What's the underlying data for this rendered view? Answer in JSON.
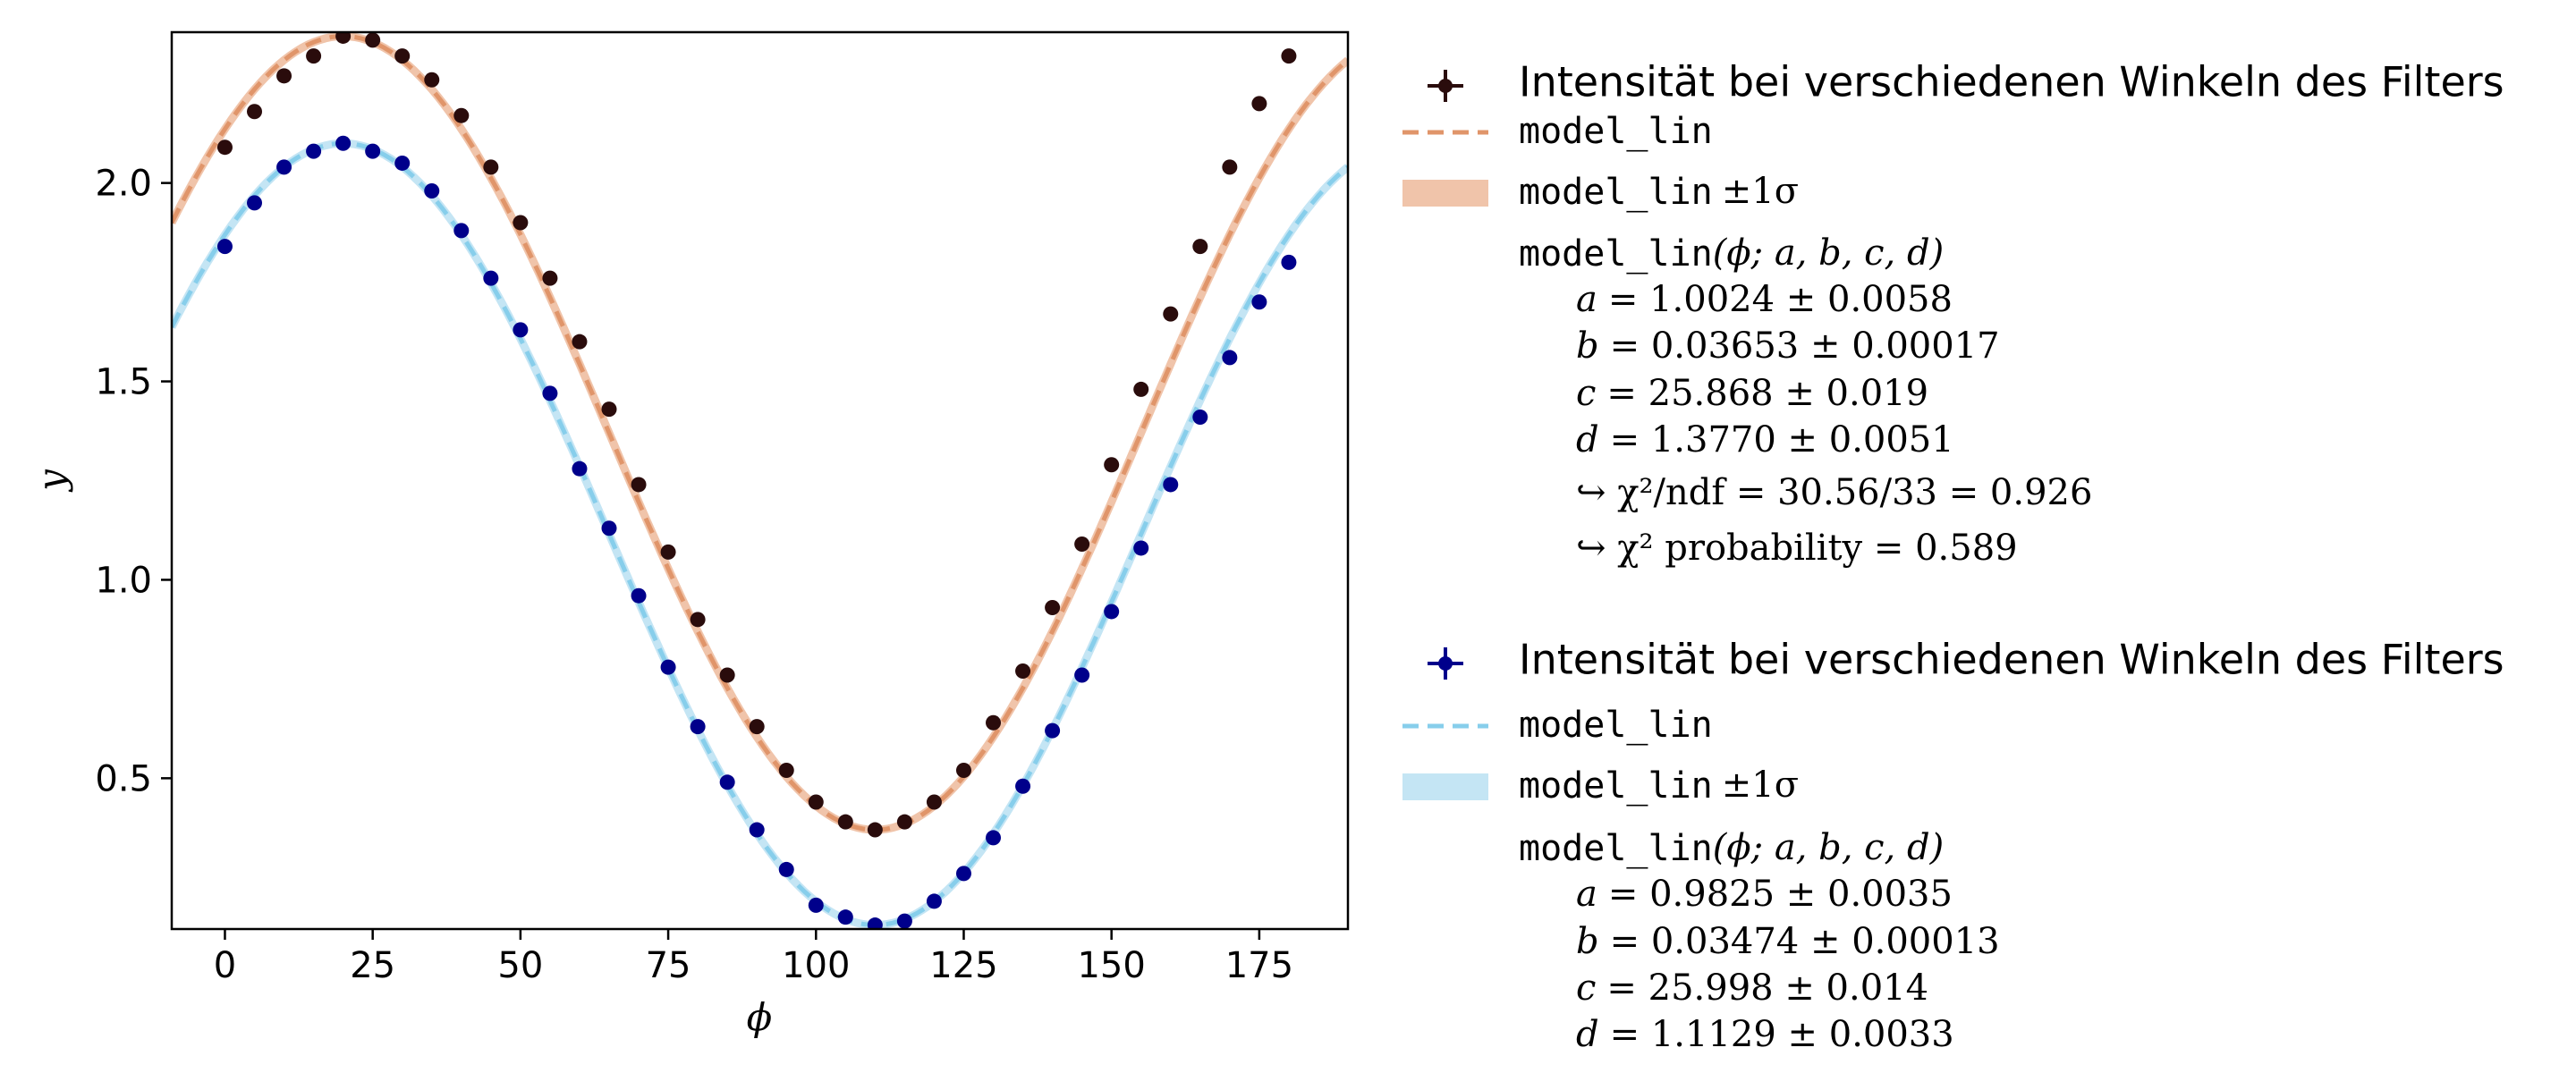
{
  "chart_data": {
    "type": "scatter",
    "xlabel": "ϕ",
    "ylabel": "y",
    "xlim": [
      -9,
      190
    ],
    "ylim": [
      0.12,
      2.38
    ],
    "xticks": [
      0,
      25,
      50,
      75,
      100,
      125,
      150,
      175
    ],
    "yticks": [
      0.5,
      1.0,
      1.5,
      2.0
    ],
    "xtick_labels": [
      "0",
      "25",
      "50",
      "75",
      "100",
      "125",
      "150",
      "175"
    ],
    "ytick_labels": [
      "0.5",
      "1.0",
      "1.5",
      "2.0"
    ],
    "grid": false,
    "legend_position": "outside-right",
    "series": [
      {
        "name": "Intensität bei verschiedenen Winkeln des Filters",
        "marker_color": "#2a0c0c",
        "fit_color": "#e0956a",
        "band_color": "#f0c4aa",
        "x": [
          0,
          5,
          10,
          15,
          20,
          25,
          30,
          35,
          40,
          45,
          50,
          55,
          60,
          65,
          70,
          75,
          80,
          85,
          90,
          95,
          100,
          105,
          110,
          115,
          120,
          125,
          130,
          135,
          140,
          145,
          150,
          155,
          160,
          165,
          170,
          175,
          180
        ],
        "y": [
          2.09,
          2.18,
          2.27,
          2.32,
          2.37,
          2.36,
          2.32,
          2.26,
          2.17,
          2.04,
          1.9,
          1.76,
          1.6,
          1.43,
          1.24,
          1.07,
          0.9,
          0.76,
          0.63,
          0.52,
          0.44,
          0.39,
          0.37,
          0.39,
          0.44,
          0.52,
          0.64,
          0.77,
          0.93,
          1.09,
          1.29,
          1.48,
          1.67,
          1.84,
          2.04,
          2.2,
          2.32
        ],
        "fit": {
          "model": "model_lin",
          "a": 1.0024,
          "b": 0.03653,
          "c": 25.868,
          "d": 1.377
        }
      },
      {
        "name": "Intensität bei verschiedenen Winkeln des Filters",
        "marker_color": "#00008b",
        "fit_color": "#87ceeb",
        "band_color": "#c4e5f4",
        "x": [
          0,
          5,
          10,
          15,
          20,
          25,
          30,
          35,
          40,
          45,
          50,
          55,
          60,
          65,
          70,
          75,
          80,
          85,
          90,
          95,
          100,
          105,
          110,
          115,
          120,
          125,
          130,
          135,
          140,
          145,
          150,
          155,
          160,
          165,
          170,
          175,
          180
        ],
        "y": [
          1.84,
          1.95,
          2.04,
          2.08,
          2.1,
          2.08,
          2.05,
          1.98,
          1.88,
          1.76,
          1.63,
          1.47,
          1.28,
          1.13,
          0.96,
          0.78,
          0.63,
          0.49,
          0.37,
          0.27,
          0.18,
          0.15,
          0.13,
          0.14,
          0.19,
          0.26,
          0.35,
          0.48,
          0.62,
          0.76,
          0.92,
          1.08,
          1.24,
          1.41,
          1.56,
          1.7,
          1.8
        ],
        "fit": {
          "model": "model_lin",
          "a": 0.9825,
          "b": 0.03474,
          "c": 25.998,
          "d": 1.1129
        }
      }
    ]
  },
  "legend": [
    {
      "data_label": "Intensität bei verschiedenen Winkeln des Filters",
      "fit_label": "model_lin",
      "band_label": "model_lin",
      "band_suffix": "±1σ",
      "formula_name": "model_lin",
      "formula_args": "(ϕ; a, b, c, d)",
      "params": [
        {
          "name": "a",
          "text": "= 1.0024 ± 0.0058"
        },
        {
          "name": "b",
          "text": "= 0.03653 ± 0.00017"
        },
        {
          "name": "c",
          "text": "= 25.868 ± 0.019"
        },
        {
          "name": "d",
          "text": "= 1.3770 ± 0.0051"
        }
      ],
      "chi2_ndf": "↪ χ²/ndf = 30.56/33 = 0.926",
      "chi2_prob": "↪ χ² probability = 0.589"
    },
    {
      "data_label": "Intensität bei verschiedenen Winkeln des Filters",
      "fit_label": "model_lin",
      "band_label": "model_lin",
      "band_suffix": "±1σ",
      "formula_name": "model_lin",
      "formula_args": "(ϕ; a, b, c, d)",
      "params": [
        {
          "name": "a",
          "text": "= 0.9825 ± 0.0035"
        },
        {
          "name": "b",
          "text": "= 0.03474 ± 0.00013"
        },
        {
          "name": "c",
          "text": "= 25.998 ± 0.014"
        },
        {
          "name": "d",
          "text": "= 1.1129 ± 0.0033"
        }
      ]
    }
  ]
}
